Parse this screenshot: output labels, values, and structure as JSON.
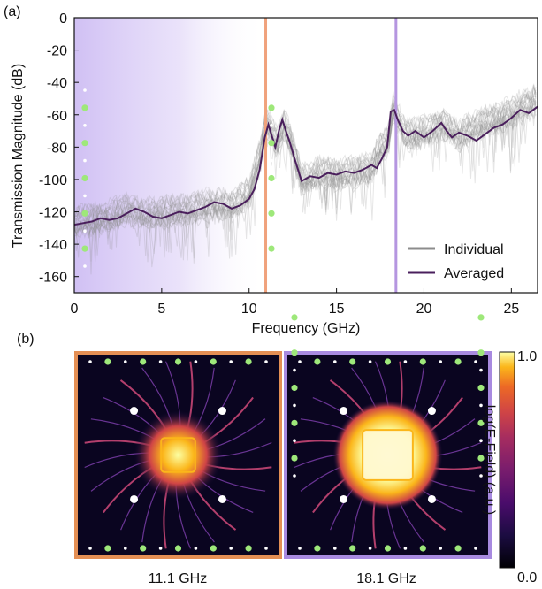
{
  "panel_labels": [
    "(a)",
    "(b)"
  ],
  "colors": {
    "individual": "#8c8c8c",
    "averaged": "#4a1f5c",
    "marker_1": "#f0a27c",
    "marker_2": "#b596e0",
    "frame_1": "#e48f54",
    "frame_2": "#a88ae0",
    "shade": "#c8b5f2"
  },
  "chart_data": [
    {
      "type": "line",
      "xlabel": "Frequency (GHz)",
      "ylabel": "Transmission Magnitude (dB)",
      "xlim": [
        0,
        26.5
      ],
      "ylim": [
        -170,
        0
      ],
      "xticks": [
        0,
        5,
        10,
        15,
        20,
        25
      ],
      "yticks": [
        0,
        -20,
        -40,
        -60,
        -80,
        -100,
        -120,
        -140,
        -160
      ],
      "legend_position": "lower-right",
      "series": [
        {
          "name": "Individual",
          "style": "many overlaid gray traces",
          "x": [
            0,
            1,
            2,
            3,
            4,
            5,
            6,
            7,
            8,
            9,
            10,
            10.5,
            11,
            11.3,
            11.6,
            12,
            12.5,
            13,
            14,
            15,
            16,
            17,
            17.5,
            18,
            18.2,
            18.5,
            19,
            20,
            21,
            22,
            23,
            24,
            25,
            26.5
          ],
          "y": [
            -126,
            -124,
            -122,
            -118,
            -121,
            -120,
            -119,
            -117,
            -115,
            -116,
            -108,
            -90,
            -63,
            -70,
            -78,
            -65,
            -80,
            -100,
            -95,
            -97,
            -95,
            -93,
            -80,
            -75,
            -55,
            -62,
            -72,
            -70,
            -65,
            -72,
            -66,
            -62,
            -58,
            -50
          ]
        },
        {
          "name": "Averaged",
          "x": [
            0,
            0.5,
            1,
            1.5,
            2,
            2.5,
            3,
            3.5,
            4,
            4.5,
            5,
            5.5,
            6,
            6.5,
            7,
            7.5,
            8,
            8.5,
            9,
            9.5,
            10,
            10.3,
            10.6,
            10.9,
            11.1,
            11.3,
            11.5,
            11.7,
            11.9,
            12.1,
            12.3,
            12.6,
            13,
            13.5,
            14,
            14.5,
            15,
            15.5,
            16,
            16.5,
            17,
            17.3,
            17.6,
            17.9,
            18.1,
            18.3,
            18.5,
            18.8,
            19.1,
            19.5,
            20,
            20.5,
            21,
            21.3,
            21.6,
            22,
            22.5,
            23,
            23.5,
            24,
            24.5,
            25,
            25.5,
            26,
            26.5
          ],
          "y": [
            -128,
            -127,
            -126,
            -124,
            -125,
            -124,
            -121,
            -118,
            -120,
            -123,
            -124,
            -122,
            -120,
            -121,
            -119,
            -117,
            -114,
            -115,
            -118,
            -116,
            -112,
            -106,
            -94,
            -74,
            -66,
            -73,
            -80,
            -70,
            -63,
            -70,
            -76,
            -87,
            -101,
            -98,
            -99,
            -96,
            -97,
            -95,
            -96,
            -94,
            -91,
            -93,
            -87,
            -80,
            -58,
            -57,
            -63,
            -70,
            -73,
            -70,
            -74,
            -70,
            -65,
            -70,
            -74,
            -71,
            -73,
            -76,
            -72,
            -68,
            -66,
            -62,
            -57,
            -59,
            -55
          ]
        }
      ],
      "markers": [
        {
          "x": 10.95
        },
        {
          "x": 18.4
        }
      ],
      "shaded_region": [
        0,
        11
      ]
    },
    {
      "type": "heatmap",
      "title": "11.1 GHz",
      "colorbar_label": "log(E-Field) (a.u.)",
      "colorbar_range": [
        "0.0",
        "1.0"
      ],
      "colormap": "inferno"
    },
    {
      "type": "heatmap",
      "title": "18.1 GHz",
      "colorbar_label": "log(E-Field) (a.u.)",
      "colorbar_range": [
        "0.0",
        "1.0"
      ],
      "colormap": "inferno"
    }
  ]
}
